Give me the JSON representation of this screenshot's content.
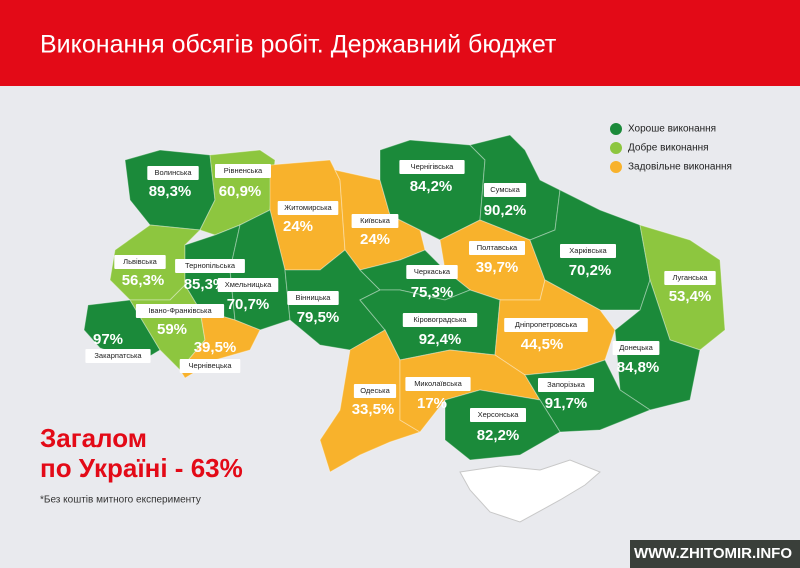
{
  "header": {
    "title": "Виконання обсягів робіт. Державний бюджет"
  },
  "legend": [
    {
      "label": "Хороше виконання",
      "color": "#1b8a3a"
    },
    {
      "label": "Добре виконання",
      "color": "#8dc63f"
    },
    {
      "label": "Задовільне виконання",
      "color": "#f8b22c"
    }
  ],
  "regions": [
    {
      "name": "Волинська",
      "value": "89,3%",
      "color": "#1b8a3a"
    },
    {
      "name": "Рівненська",
      "value": "60,9%",
      "color": "#8dc63f"
    },
    {
      "name": "Житомирська",
      "value": "24%",
      "color": "#f8b22c"
    },
    {
      "name": "Київська",
      "value": "24%",
      "color": "#f8b22c"
    },
    {
      "name": "Чернігівська",
      "value": "84,2%",
      "color": "#1b8a3a"
    },
    {
      "name": "Сумська",
      "value": "90,2%",
      "color": "#1b8a3a"
    },
    {
      "name": "Полтавська",
      "value": "39,7%",
      "color": "#f8b22c"
    },
    {
      "name": "Харківська",
      "value": "70,2%",
      "color": "#1b8a3a"
    },
    {
      "name": "Луганська",
      "value": "53,4%",
      "color": "#8dc63f"
    },
    {
      "name": "Львівська",
      "value": "56,3%",
      "color": "#8dc63f"
    },
    {
      "name": "Тернопільська",
      "value": "85,3%",
      "color": "#1b8a3a"
    },
    {
      "name": "Хмельницька",
      "value": "70,7%",
      "color": "#1b8a3a"
    },
    {
      "name": "Вінницька",
      "value": "79,5%",
      "color": "#1b8a3a"
    },
    {
      "name": "Черкаська",
      "value": "75,3%",
      "color": "#1b8a3a"
    },
    {
      "name": "Кіровоградська",
      "value": "92,4%",
      "color": "#1b8a3a"
    },
    {
      "name": "Дніпропетровська",
      "value": "44,5%",
      "color": "#f8b22c"
    },
    {
      "name": "Донецька",
      "value": "84,8%",
      "color": "#1b8a3a"
    },
    {
      "name": "Закарпатська",
      "value": "97%",
      "color": "#1b8a3a"
    },
    {
      "name": "Івано-Франківська",
      "value": "59%",
      "color": "#8dc63f"
    },
    {
      "name": "Чернівецька",
      "value": "39,5%",
      "color": "#f8b22c"
    },
    {
      "name": "Одеська",
      "value": "33,5%",
      "color": "#f8b22c"
    },
    {
      "name": "Миколаївська",
      "value": "17%",
      "color": "#f8b22c"
    },
    {
      "name": "Запорізька",
      "value": "91,7%",
      "color": "#1b8a3a"
    },
    {
      "name": "Херсонська",
      "value": "82,2%",
      "color": "#1b8a3a"
    }
  ],
  "total": {
    "line1": "Загалом",
    "line2": "по Україні - 63%"
  },
  "footnote": "*Без коштів митного експерименту",
  "watermark": "WWW.ZHITOMIR.INFO"
}
